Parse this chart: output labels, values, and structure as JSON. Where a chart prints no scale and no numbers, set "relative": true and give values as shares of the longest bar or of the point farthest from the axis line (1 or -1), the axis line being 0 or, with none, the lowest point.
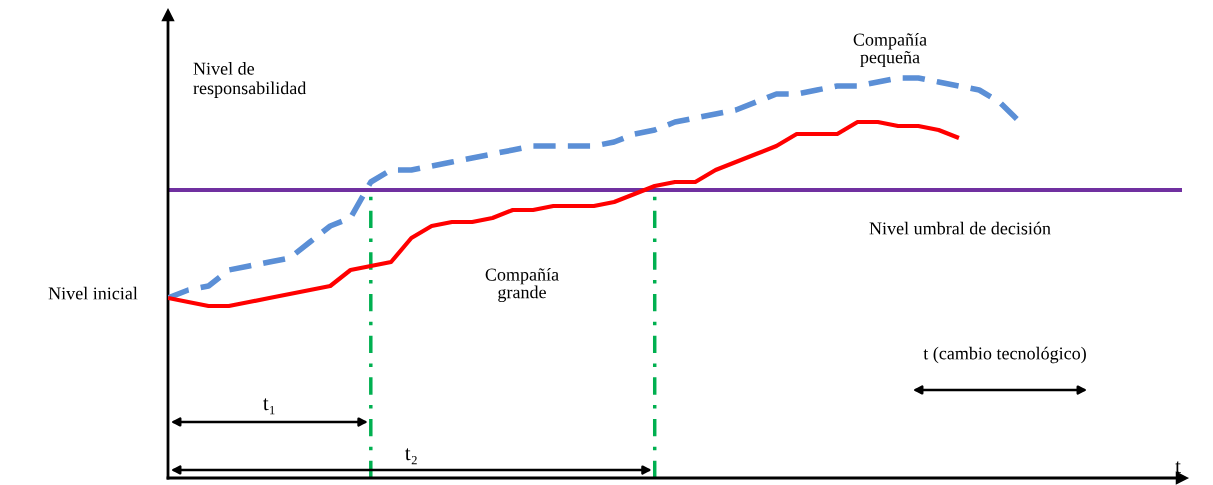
{
  "chart_data": {
    "type": "line",
    "relative": true,
    "xlabel": "t",
    "ylabel": "Nivel de\nresponsabilidad",
    "categories": [
      null,
      null,
      null,
      null,
      null,
      null,
      null,
      null,
      null,
      null,
      null,
      null,
      null,
      null,
      null,
      null,
      null,
      null,
      null,
      null,
      null,
      null,
      null,
      null,
      null,
      null,
      null,
      null,
      null,
      null,
      null,
      null,
      null,
      null,
      null,
      null,
      null,
      null,
      null,
      null,
      null,
      null,
      null,
      null,
      null,
      null,
      null,
      null,
      null,
      null,
      null
    ],
    "series": [
      {
        "name": "Compañía\npequeña",
        "color": "#5b8fd6",
        "line_style": "dashed",
        "values": [
          0.45,
          0.47,
          0.48,
          0.52,
          0.53,
          0.54,
          0.55,
          0.59,
          0.63,
          0.65,
          0.74,
          0.77,
          0.77,
          0.78,
          0.79,
          0.8,
          0.81,
          0.82,
          0.83,
          0.83,
          0.83,
          0.83,
          0.84,
          0.86,
          0.87,
          0.89,
          0.9,
          0.91,
          0.92,
          0.94,
          0.96,
          0.96,
          0.97,
          0.98,
          0.98,
          0.99,
          1.0,
          1.0,
          0.99,
          0.98,
          0.97,
          0.94,
          0.89,
          null,
          null,
          null,
          null,
          null,
          null,
          null,
          null
        ]
      },
      {
        "name": "Compañía\ngrande",
        "color": "#ff0000",
        "line_style": "solid",
        "values": [
          0.45,
          0.44,
          0.43,
          0.43,
          0.44,
          0.45,
          0.46,
          0.47,
          0.48,
          0.52,
          0.53,
          0.54,
          0.6,
          0.63,
          0.64,
          0.64,
          0.65,
          0.67,
          0.67,
          0.68,
          0.68,
          0.68,
          0.69,
          0.71,
          0.73,
          0.74,
          0.74,
          0.77,
          0.79,
          0.81,
          0.83,
          0.86,
          0.86,
          0.86,
          0.89,
          0.89,
          0.88,
          0.88,
          0.87,
          0.85,
          null,
          null,
          null,
          null,
          null,
          null,
          null,
          null,
          null,
          null,
          null
        ]
      }
    ],
    "ref_lines": [
      {
        "axis": "y",
        "value": 0.72,
        "label": "Nivel umbral de decisión",
        "color": "#7030a0",
        "line_style": "solid"
      }
    ],
    "annotations": [
      "Nivel inicial",
      "t₁",
      "t₂",
      "t (cambio tecnológico)"
    ],
    "legend": false,
    "marker": "none"
  }
}
